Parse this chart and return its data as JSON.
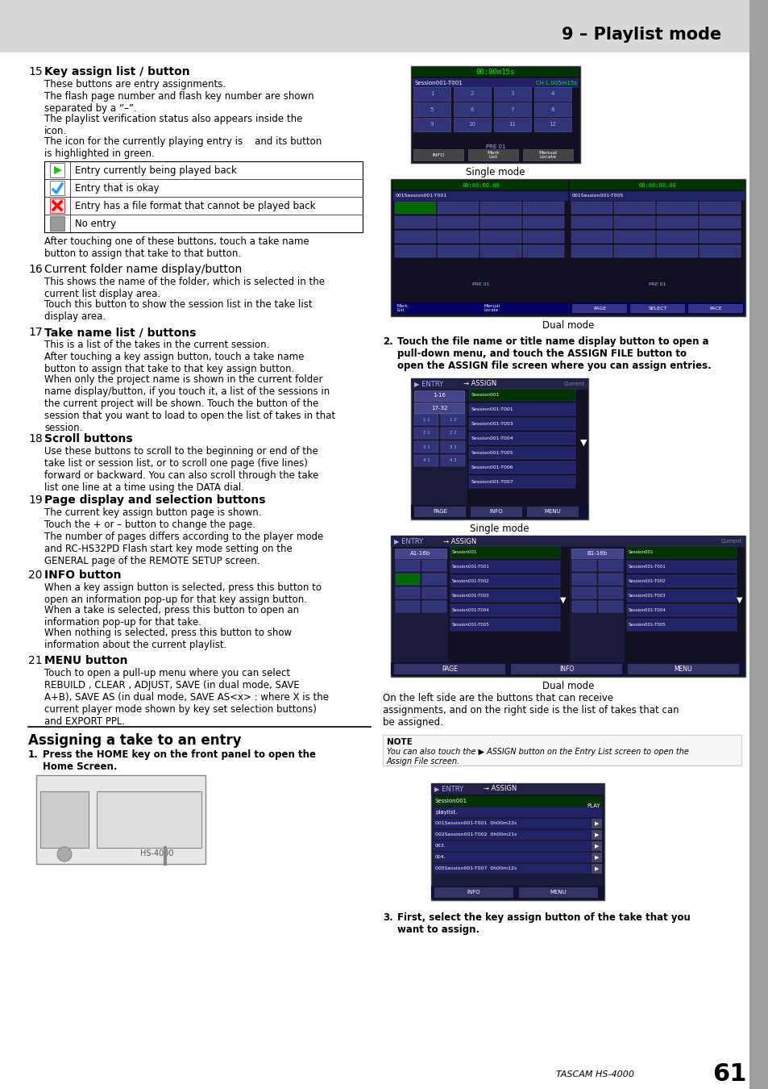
{
  "page_title": "9 – Playlist mode",
  "page_number": "61",
  "brand": "TASCAM HS-4000",
  "bg_color": "#ffffff",
  "header_bg": "#d8d8d8",
  "sidebar_color": "#a0a0a0",
  "sections": [
    {
      "num": "15",
      "title": "Key assign list / button",
      "bold": true,
      "body": [
        "These buttons are entry assignments.",
        "The flash page number and flash key number are shown\nseparated by a “–”.",
        "The playlist verification status also appears inside the\nicon.",
        "The icon for the currently playing entry is    and its button\nis highlighted in green."
      ],
      "table_rows": [
        {
          "icon": "play_green",
          "text": "Entry currently being played back"
        },
        {
          "icon": "check_blue",
          "text": "Entry that is okay"
        },
        {
          "icon": "x_red",
          "text": "Entry has a file format that cannot be played back"
        },
        {
          "icon": "gray_box",
          "text": "No entry"
        }
      ],
      "after_table": "After touching one of these buttons, touch a take name\nbutton to assign that take to that button."
    },
    {
      "num": "16",
      "title": "Current folder name display/button",
      "bold": false,
      "body": [
        "This shows the name of the folder, which is selected in the\ncurrent list display area.",
        "Touch this button to show the session list in the take list\ndisplay area."
      ]
    },
    {
      "num": "17",
      "title": "Take name list / buttons",
      "bold": true,
      "body": [
        "This is a list of the takes in the current session.",
        "After touching a key assign button, touch a take name\nbutton to assign that take to that key assign button.",
        "When only the project name is shown in the current folder\nname display/button, if you touch it, a list of the sessions in\nthe current project will be shown. Touch the button of the\nsession that you want to load to open the list of takes in that\nsession."
      ]
    },
    {
      "num": "18",
      "title": "Scroll buttons",
      "bold": true,
      "body": [
        "Use these buttons to scroll to the beginning or end of the\ntake list or session list, or to scroll one page (five lines)\nforward or backward. You can also scroll through the take\nlist one line at a time using the DATA dial."
      ]
    },
    {
      "num": "19",
      "title": "Page display and selection buttons",
      "bold": true,
      "body": [
        "The current key assign button page is shown.",
        "Touch the + or – button to change the page.",
        "The number of pages differs according to the player mode\nand RC-HS32PD Flash start key mode setting on the\nGENERAL page of the REMOTE SETUP screen."
      ]
    },
    {
      "num": "20",
      "title": "INFO button",
      "bold": true,
      "body": [
        "When a key assign button is selected, press this button to\nopen an information pop-up for that key assign button.",
        "When a take is selected, press this button to open an\ninformation pop-up for that take.",
        "When nothing is selected, press this button to show\ninformation about the current playlist."
      ]
    },
    {
      "num": "21",
      "title": "MENU button",
      "bold": true,
      "body": [
        "Touch to open a pull-up menu where you can select\nREBUILD , CLEAR , ADJUST, SAVE (in dual mode, SAVE\nA+B), SAVE AS (in dual mode, SAVE AS<x> : where X is the\ncurrent player mode shown by key set selection buttons)\nand EXPORT PPL."
      ]
    }
  ],
  "assign_section_title": "Assigning a take to an entry",
  "step1_text": "Press the HOME key on the front panel to open the\nHome Screen.",
  "step2_text": "Touch the file name or title name display button to open a\npull-down menu, and touch the ASSIGN FILE button to\nopen the ASSIGN file screen where you can assign entries.",
  "step3_text": "First, select the key assign button of the take that you\nwant to assign.",
  "on_left_text": "On the left side are the buttons that can receive\nassignments, and on the right side is the list of takes that can\nbe assigned.",
  "note_line1": "You can also touch the ▶ ASSIGN button on the Entry List screen to open the",
  "note_line2": "Assign File screen."
}
